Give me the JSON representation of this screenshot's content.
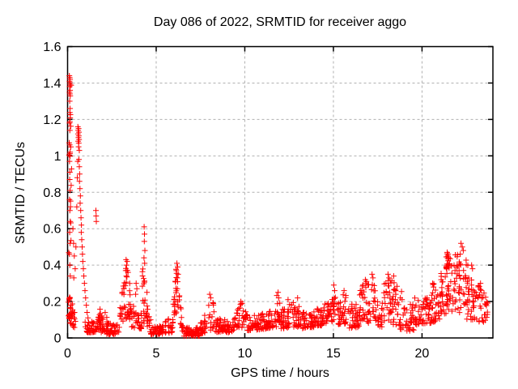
{
  "page": {
    "background": "#ffffff"
  },
  "chart_data": {
    "type": "scatter",
    "title": "Day 086 of 2022, SRMTID for receiver aggo",
    "xlabel": "GPS time / hours",
    "ylabel": "SRMTID / TECUs",
    "xlim": [
      0,
      24
    ],
    "ylim": [
      0,
      1.6
    ],
    "xticks": [
      0,
      5,
      10,
      15,
      20
    ],
    "xtick_labels": [
      "0",
      "5",
      "10",
      "15",
      "20"
    ],
    "yticks": [
      0,
      0.2,
      0.4,
      0.6,
      0.8,
      1,
      1.2,
      1.4,
      1.6
    ],
    "ytick_labels": [
      "0",
      "0.2",
      "0.4",
      "0.6",
      "0.8",
      "1",
      "1.2",
      "1.4",
      "1.6"
    ],
    "grid": true,
    "legend_position": "none",
    "series_name": "SRMTID",
    "marker": "plus",
    "marker_size": 7,
    "colors": {
      "marker": "#ff0000",
      "grid": "#b0b0b0",
      "frame": "#000000",
      "text": "#000000"
    },
    "seed": 1337,
    "points": [
      [
        0.1,
        1.44
      ],
      [
        0.12,
        1.43
      ],
      [
        0.14,
        1.42
      ],
      [
        0.11,
        1.41
      ],
      [
        0.13,
        1.4
      ],
      [
        0.15,
        1.39
      ],
      [
        0.12,
        1.38
      ],
      [
        0.14,
        1.36
      ],
      [
        0.11,
        1.35
      ],
      [
        0.13,
        1.34
      ],
      [
        0.15,
        1.33
      ],
      [
        0.12,
        1.3
      ],
      [
        0.14,
        1.26
      ],
      [
        0.11,
        1.18
      ],
      [
        0.13,
        1.14
      ],
      [
        0.12,
        1.06
      ],
      [
        0.14,
        1.02
      ],
      [
        0.11,
        0.97
      ],
      [
        0.13,
        0.91
      ],
      [
        0.12,
        0.87
      ],
      [
        0.14,
        0.81
      ],
      [
        0.11,
        0.76
      ],
      [
        0.13,
        0.7
      ],
      [
        0.15,
        0.64
      ],
      [
        0.12,
        0.58
      ],
      [
        0.14,
        0.52
      ],
      [
        0.11,
        0.46
      ],
      [
        0.13,
        0.4
      ],
      [
        0.15,
        0.34
      ],
      [
        0.58,
        1.16
      ],
      [
        0.62,
        1.15
      ],
      [
        0.6,
        1.14
      ],
      [
        0.64,
        1.13
      ],
      [
        0.59,
        1.12
      ],
      [
        0.63,
        1.11
      ],
      [
        0.61,
        1.1
      ],
      [
        0.65,
        1.09
      ],
      [
        0.6,
        1.08
      ],
      [
        0.63,
        1.07
      ],
      [
        0.62,
        1.05
      ],
      [
        0.66,
        1.03
      ],
      [
        0.64,
        0.98
      ],
      [
        0.66,
        0.94
      ],
      [
        0.68,
        0.9
      ],
      [
        0.67,
        0.86
      ],
      [
        0.7,
        0.82
      ],
      [
        0.72,
        0.78
      ],
      [
        0.71,
        0.74
      ],
      [
        0.74,
        0.7
      ],
      [
        0.76,
        0.66
      ],
      [
        0.78,
        0.62
      ],
      [
        0.77,
        0.58
      ],
      [
        0.8,
        0.54
      ],
      [
        0.82,
        0.5
      ],
      [
        0.84,
        0.46
      ],
      [
        0.86,
        0.42
      ],
      [
        0.89,
        0.38
      ],
      [
        0.92,
        0.34
      ],
      [
        0.95,
        0.3
      ],
      [
        0.98,
        0.26
      ],
      [
        1.02,
        0.22
      ],
      [
        1.06,
        0.18
      ],
      [
        1.1,
        0.14
      ],
      [
        1.15,
        0.11
      ],
      [
        0.3,
        0.6
      ],
      [
        0.34,
        0.52
      ],
      [
        0.38,
        0.45
      ],
      [
        0.43,
        0.38
      ],
      [
        0.35,
        0.33
      ],
      [
        0.47,
        0.5
      ],
      [
        0.52,
        0.72
      ],
      [
        0.55,
        0.88
      ],
      [
        0.57,
        0.97
      ],
      [
        1.6,
        0.7
      ],
      [
        1.61,
        0.67
      ],
      [
        1.62,
        0.64
      ],
      [
        3.3,
        0.43
      ],
      [
        3.36,
        0.42
      ],
      [
        3.33,
        0.4
      ],
      [
        3.28,
        0.37
      ],
      [
        3.41,
        0.36
      ],
      [
        3.87,
        0.3
      ],
      [
        3.91,
        0.27
      ],
      [
        3.84,
        0.24
      ],
      [
        4.32,
        0.61
      ],
      [
        4.34,
        0.57
      ],
      [
        4.33,
        0.53
      ],
      [
        4.36,
        0.48
      ],
      [
        4.31,
        0.44
      ],
      [
        4.35,
        0.41
      ],
      [
        6.17,
        0.41
      ],
      [
        6.21,
        0.39
      ],
      [
        6.14,
        0.37
      ],
      [
        6.24,
        0.35
      ],
      [
        6.19,
        0.33
      ],
      [
        8.02,
        0.24
      ],
      [
        8.08,
        0.22
      ],
      [
        9.78,
        0.2
      ],
      [
        9.85,
        0.19
      ],
      [
        11.88,
        0.25
      ],
      [
        11.91,
        0.22
      ],
      [
        12.44,
        0.21
      ],
      [
        12.98,
        0.22
      ],
      [
        15.02,
        0.29
      ],
      [
        15.07,
        0.26
      ],
      [
        15.6,
        0.26
      ],
      [
        16.8,
        0.32
      ],
      [
        16.85,
        0.3
      ],
      [
        17.18,
        0.35
      ],
      [
        17.23,
        0.33
      ],
      [
        18.08,
        0.35
      ],
      [
        18.14,
        0.33
      ],
      [
        18.4,
        0.34
      ],
      [
        20.6,
        0.3
      ],
      [
        20.65,
        0.28
      ],
      [
        21.42,
        0.47
      ],
      [
        21.48,
        0.46
      ],
      [
        21.45,
        0.45
      ],
      [
        21.52,
        0.44
      ],
      [
        22.2,
        0.52
      ],
      [
        22.27,
        0.5
      ],
      [
        22.33,
        0.48
      ],
      [
        22.16,
        0.46
      ],
      [
        22.8,
        0.4
      ],
      [
        22.85,
        0.38
      ],
      [
        23.3,
        0.3
      ]
    ],
    "noise_bands_format": "[x_start, x_end, n_points, y_low_start, y_low_end, y_high_start, y_high_end, bias_toward_low]",
    "noise_bands": [
      [
        0.03,
        0.45,
        45,
        0.1,
        0.04,
        0.3,
        0.12,
        1.2
      ],
      [
        0.06,
        0.24,
        18,
        0.3,
        0.3,
        1.44,
        1.44,
        0.55
      ],
      [
        0.95,
        1.55,
        35,
        0.03,
        0.03,
        0.1,
        0.1,
        1.5
      ],
      [
        1.55,
        2.05,
        30,
        0.03,
        0.03,
        0.13,
        0.1,
        1.5
      ],
      [
        1.8,
        2.0,
        8,
        0.06,
        0.06,
        0.18,
        0.18,
        1.0
      ],
      [
        2.05,
        2.95,
        50,
        0.02,
        0.02,
        0.08,
        0.08,
        1.4
      ],
      [
        2.1,
        2.3,
        7,
        0.04,
        0.04,
        0.15,
        0.15,
        1.0
      ],
      [
        2.95,
        3.25,
        18,
        0.05,
        0.12,
        0.16,
        0.38,
        1.2
      ],
      [
        3.25,
        3.55,
        28,
        0.1,
        0.1,
        0.43,
        0.3,
        1.1
      ],
      [
        3.55,
        3.8,
        12,
        0.05,
        0.05,
        0.24,
        0.16,
        1.2
      ],
      [
        3.8,
        4.2,
        20,
        0.04,
        0.05,
        0.18,
        0.14,
        1.3
      ],
      [
        4.22,
        4.5,
        24,
        0.08,
        0.08,
        0.4,
        0.28,
        1.1
      ],
      [
        4.5,
        4.7,
        10,
        0.03,
        0.03,
        0.18,
        0.1,
        1.2
      ],
      [
        4.7,
        5.4,
        45,
        0.02,
        0.02,
        0.07,
        0.07,
        1.4
      ],
      [
        5.4,
        5.95,
        25,
        0.02,
        0.03,
        0.12,
        0.1,
        1.3
      ],
      [
        5.95,
        6.15,
        12,
        0.05,
        0.12,
        0.2,
        0.38,
        1.0
      ],
      [
        6.1,
        6.32,
        16,
        0.12,
        0.12,
        0.38,
        0.38,
        0.9
      ],
      [
        6.32,
        6.5,
        10,
        0.03,
        0.03,
        0.22,
        0.1,
        1.2
      ],
      [
        6.5,
        7.5,
        60,
        0.01,
        0.01,
        0.06,
        0.06,
        1.3
      ],
      [
        7.5,
        8.15,
        30,
        0.02,
        0.04,
        0.08,
        0.22,
        1.2
      ],
      [
        8.15,
        8.4,
        13,
        0.03,
        0.03,
        0.22,
        0.12,
        1.2
      ],
      [
        8.4,
        9.35,
        55,
        0.03,
        0.03,
        0.11,
        0.09,
        1.4
      ],
      [
        9.35,
        9.85,
        25,
        0.04,
        0.05,
        0.13,
        0.2,
        1.2
      ],
      [
        9.85,
        10.15,
        15,
        0.05,
        0.04,
        0.2,
        0.12,
        1.2
      ],
      [
        10.15,
        11.2,
        60,
        0.04,
        0.05,
        0.12,
        0.14,
        1.4
      ],
      [
        11.2,
        11.8,
        35,
        0.05,
        0.06,
        0.14,
        0.16,
        1.4
      ],
      [
        11.8,
        12.05,
        14,
        0.07,
        0.07,
        0.24,
        0.2,
        1.1
      ],
      [
        12.05,
        12.7,
        38,
        0.05,
        0.06,
        0.16,
        0.2,
        1.3
      ],
      [
        12.7,
        13.15,
        25,
        0.06,
        0.06,
        0.22,
        0.18,
        1.2
      ],
      [
        13.15,
        14.0,
        48,
        0.05,
        0.06,
        0.14,
        0.15,
        1.3
      ],
      [
        14.0,
        14.9,
        52,
        0.06,
        0.08,
        0.17,
        0.2,
        1.3
      ],
      [
        14.9,
        15.2,
        16,
        0.09,
        0.09,
        0.27,
        0.24,
        1.1
      ],
      [
        15.2,
        15.8,
        35,
        0.07,
        0.08,
        0.22,
        0.25,
        1.3
      ],
      [
        15.8,
        16.45,
        38,
        0.05,
        0.06,
        0.22,
        0.18,
        1.3
      ],
      [
        16.45,
        17.45,
        58,
        0.08,
        0.08,
        0.3,
        0.33,
        1.25
      ],
      [
        17.45,
        17.8,
        18,
        0.06,
        0.06,
        0.2,
        0.22,
        1.2
      ],
      [
        17.8,
        18.7,
        52,
        0.08,
        0.07,
        0.34,
        0.3,
        1.2
      ],
      [
        18.7,
        19.55,
        42,
        0.05,
        0.03,
        0.28,
        0.18,
        1.3
      ],
      [
        19.55,
        20.45,
        48,
        0.07,
        0.08,
        0.22,
        0.25,
        1.3
      ],
      [
        20.45,
        21.0,
        32,
        0.08,
        0.1,
        0.3,
        0.3,
        1.2
      ],
      [
        21.0,
        21.85,
        55,
        0.12,
        0.15,
        0.38,
        0.46,
        1.15
      ],
      [
        21.35,
        21.6,
        12,
        0.38,
        0.38,
        0.47,
        0.47,
        1.0
      ],
      [
        21.85,
        22.5,
        42,
        0.14,
        0.13,
        0.48,
        0.44,
        1.15
      ],
      [
        22.5,
        23.1,
        36,
        0.1,
        0.1,
        0.42,
        0.35,
        1.2
      ],
      [
        23.1,
        23.75,
        32,
        0.08,
        0.08,
        0.32,
        0.2,
        1.2
      ]
    ]
  }
}
